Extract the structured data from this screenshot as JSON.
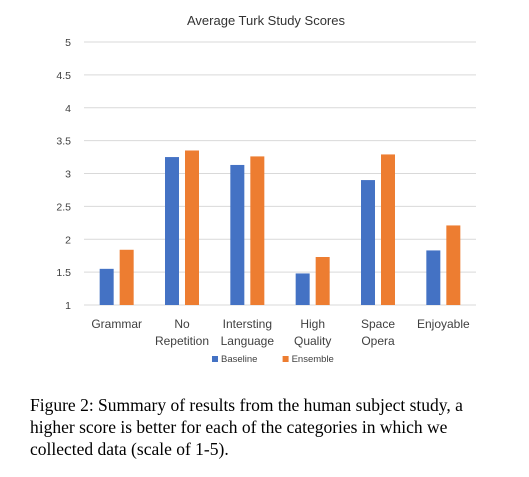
{
  "chart_data": {
    "type": "bar",
    "title": "Average Turk Study Scores",
    "xlabel": "",
    "ylabel": "",
    "ylim": [
      1,
      5
    ],
    "yticks": [
      "1",
      "1.5",
      "2",
      "2.5",
      "3",
      "3.5",
      "4",
      "4.5",
      "5"
    ],
    "categories": [
      [
        "Grammar"
      ],
      [
        "No",
        "Repetition"
      ],
      [
        "Intersting",
        "Language"
      ],
      [
        "High",
        "Quality"
      ],
      [
        "Space",
        "Opera"
      ],
      [
        "Enjoyable"
      ]
    ],
    "series": [
      {
        "name": "Baseline",
        "color": "#4472c4",
        "values": [
          1.55,
          3.25,
          3.13,
          1.48,
          2.9,
          1.83
        ]
      },
      {
        "name": "Ensemble",
        "color": "#ed7d31",
        "values": [
          1.84,
          3.35,
          3.26,
          1.73,
          3.29,
          2.21
        ]
      }
    ],
    "grid": true,
    "legend_position": "bottom"
  },
  "caption": "Figure 2: Summary of results from the human subject study, a higher score is better for each of the categories in which we collected data (scale of 1-5)."
}
